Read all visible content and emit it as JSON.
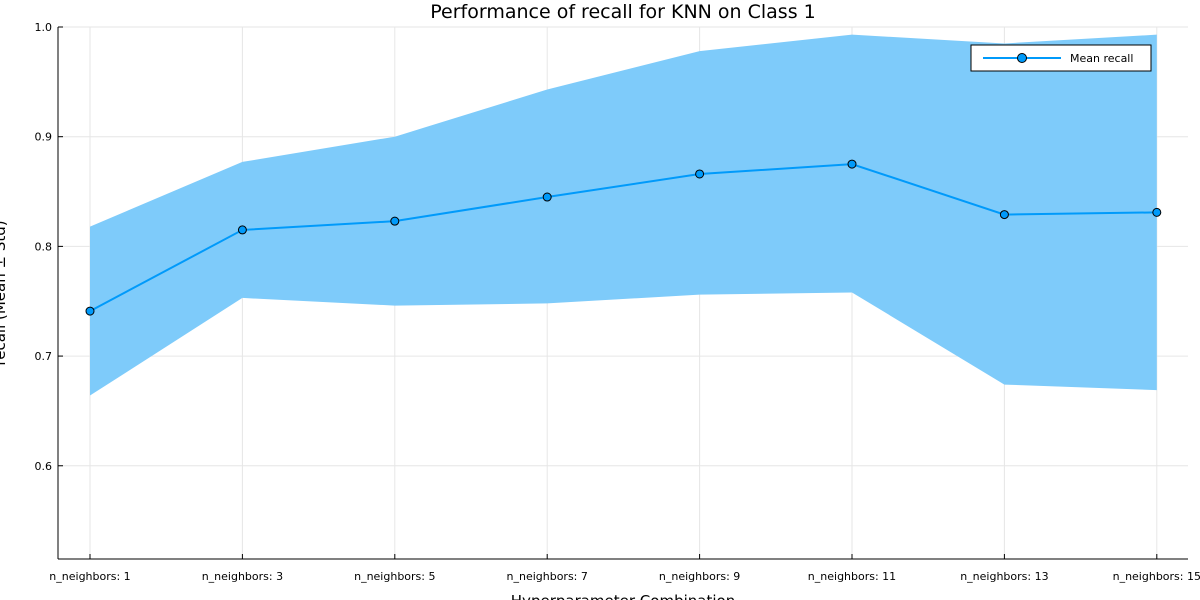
{
  "chart_data": {
    "type": "line",
    "title": "Performance of recall for KNN on Class 1",
    "xlabel": "Hyperparameter Combination",
    "ylabel": "recall (Mean ± Std)",
    "categories": [
      "n_neighbors: 1",
      "n_neighbors: 3",
      "n_neighbors: 5",
      "n_neighbors: 7",
      "n_neighbors: 9",
      "n_neighbors: 11",
      "n_neighbors: 13",
      "n_neighbors: 15"
    ],
    "series": [
      {
        "name": "Mean recall",
        "values": [
          0.741,
          0.815,
          0.823,
          0.845,
          0.866,
          0.875,
          0.829,
          0.831
        ],
        "upper": [
          0.818,
          0.877,
          0.9,
          0.943,
          0.978,
          0.993,
          0.985,
          0.993
        ],
        "lower": [
          0.664,
          0.753,
          0.746,
          0.748,
          0.756,
          0.758,
          0.674,
          0.669
        ],
        "color": "#009AFA",
        "band_color": "#7ECBFA"
      }
    ],
    "ylim": [
      0.515,
      1.0
    ],
    "yticks": [
      "0.6",
      "0.7",
      "0.8",
      "0.9",
      "1.0"
    ],
    "grid": true,
    "legend_position": "top-right"
  }
}
